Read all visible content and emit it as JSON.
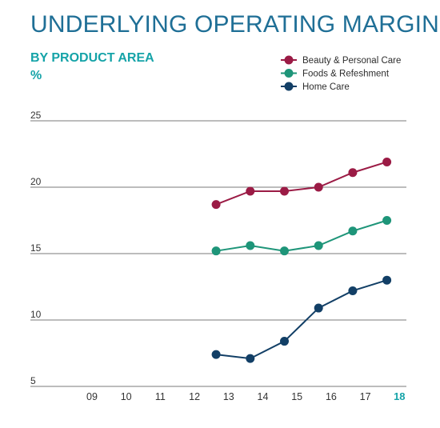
{
  "header": {
    "title": "UNDERLYING OPERATING MARGIN",
    "subtitle": "BY PRODUCT AREA",
    "unit": "%"
  },
  "chart_data": {
    "type": "line",
    "title": "UNDERLYING OPERATING MARGIN",
    "subtitle": "BY PRODUCT AREA",
    "ylabel": "%",
    "xlabel": "",
    "categories": [
      "09",
      "10",
      "11",
      "12",
      "13",
      "14",
      "15",
      "16",
      "17",
      "18"
    ],
    "ylim": [
      5,
      25
    ],
    "yticks": [
      5,
      10,
      15,
      20,
      25
    ],
    "grid": "horizontal",
    "legend_position": "top-right",
    "highlight_category": "18",
    "series": [
      {
        "name": "Beauty & Personal Care",
        "color": "#9b1b45",
        "x": [
          "12",
          "13",
          "14",
          "15",
          "16",
          "17"
        ],
        "values": [
          18.7,
          19.7,
          19.7,
          20.0,
          21.1,
          21.9
        ]
      },
      {
        "name": "Foods & Refeshment",
        "color": "#1e9579",
        "x": [
          "12",
          "13",
          "14",
          "15",
          "16",
          "17"
        ],
        "values": [
          15.2,
          15.6,
          15.2,
          15.6,
          16.7,
          17.5
        ]
      },
      {
        "name": "Home Care",
        "color": "#123f66",
        "x": [
          "12",
          "13",
          "14",
          "15",
          "16",
          "17"
        ],
        "values": [
          7.4,
          7.1,
          8.4,
          10.9,
          12.2,
          13.0
        ]
      }
    ]
  }
}
